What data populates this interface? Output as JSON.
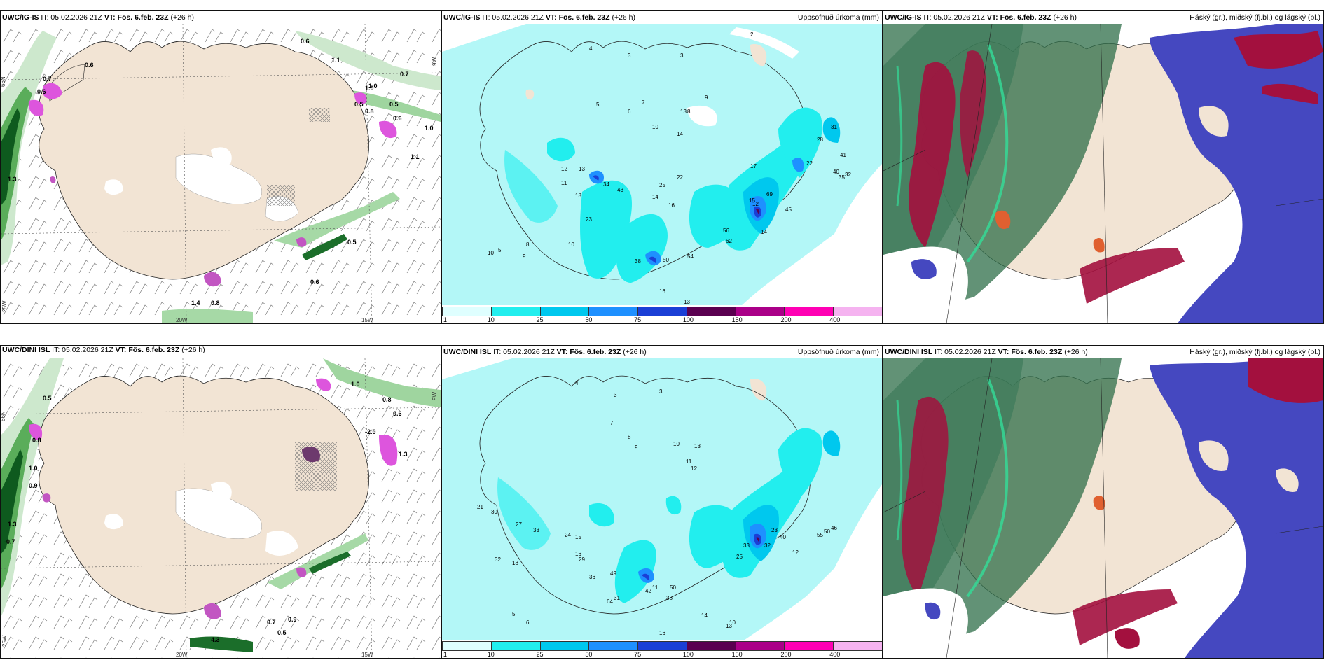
{
  "panels": [
    {
      "model": "UWC/IG-IS",
      "it": "IT: 05.02.2026 21Z",
      "vt": "VT: Fös. 6.feb. 23Z",
      "lead": "(+26 h)",
      "right": ""
    },
    {
      "model": "UWC/IG-IS",
      "it": "IT: 05.02.2026 21Z",
      "vt": "VT: Fös. 6.feb. 23Z",
      "lead": "(+26 h)",
      "right": "Uppsöfnuð úrkoma (mm)"
    },
    {
      "model": "UWC/IG-IS",
      "it": "IT: 05.02.2026 21Z",
      "vt": "VT: Fös. 6.feb. 23Z",
      "lead": "(+26 h)",
      "right": "Háský (gr.), miðský (fj.bl.) og lágský (bl.)"
    },
    {
      "model": "UWC/DINI ISL",
      "it": "IT: 05.02.2026 21Z",
      "vt": "VT: Fös. 6.feb. 23Z",
      "lead": "(+26 h)",
      "right": ""
    },
    {
      "model": "UWC/DINI ISL",
      "it": "IT: 05.02.2026 21Z",
      "vt": "VT: Fös. 6.feb. 23Z",
      "lead": "(+26 h)",
      "right": "Uppsöfnuð úrkoma (mm)"
    },
    {
      "model": "UWC/DINI ISL",
      "it": "IT: 05.02.2026 21Z",
      "vt": "VT: Fös. 6.feb. 23Z",
      "lead": "(+26 h)",
      "right": "Háský (gr.), miðský (fj.bl.) og lágský (bl.)"
    }
  ],
  "axis_labels": {
    "lat66": "66N",
    "lon25": "25W",
    "lon20": "20W",
    "lon15": "15W",
    "lon9": "9W"
  },
  "legend": {
    "ticks": [
      "1",
      "10",
      "25",
      "50",
      "75",
      "100",
      "150",
      "200",
      "400"
    ],
    "colors": [
      "#dfffff",
      "#22eeee",
      "#00c8ee",
      "#1e90ff",
      "#1b3fd6",
      "#5a0050",
      "#aa0088",
      "#ff00b4",
      "#f5b3f0"
    ]
  },
  "colors": {
    "land": "#f2e4d4",
    "sea_precip": "#b3f7f7",
    "snow_green": "#2e8b3a",
    "high_cloud": "#2d6e48",
    "mid_cloud": "#a3103e",
    "low_cloud": "#4548c0",
    "pink": "#dd55dd"
  },
  "labels": {
    "p1": [
      "0.6",
      "0.6",
      "0.7",
      "0.6",
      "0.7",
      "1.1",
      "1.0",
      "0.5",
      "0.8",
      "1.0",
      "0.5",
      "0.6",
      "1.0",
      "1.1",
      "0.5",
      "0.6",
      "1.4",
      "0.8",
      "1.3"
    ],
    "p4": [
      "0.5",
      "1.0",
      "-2.0",
      "0.8",
      "0.6",
      "0.8",
      "1.0",
      "0.9",
      "-0.7",
      "1.3",
      "0.7",
      "0.9",
      "0.5",
      "1.3",
      "4.3"
    ],
    "p2": [
      "4",
      "3",
      "3",
      "2",
      "5",
      "6",
      "7",
      "8",
      "9",
      "10",
      "13",
      "14",
      "12",
      "13",
      "11",
      "18",
      "23",
      "34",
      "43",
      "25",
      "22",
      "14",
      "16",
      "38",
      "22",
      "31",
      "41",
      "40",
      "35",
      "32",
      "28",
      "17",
      "15",
      "50",
      "54",
      "56",
      "62",
      "69",
      "45",
      "12",
      "14",
      "10",
      "8",
      "10",
      "5",
      "9",
      "16",
      "13"
    ],
    "p5": [
      "4",
      "3",
      "3",
      "7",
      "8",
      "9",
      "10",
      "13",
      "12",
      "11",
      "21",
      "30",
      "27",
      "33",
      "32",
      "18",
      "24",
      "15",
      "16",
      "29",
      "36",
      "49",
      "64",
      "31",
      "25",
      "33",
      "32",
      "40",
      "55",
      "50",
      "46",
      "23",
      "12",
      "11",
      "50",
      "38",
      "42",
      "14",
      "13",
      "10",
      "6",
      "5",
      "16"
    ]
  }
}
